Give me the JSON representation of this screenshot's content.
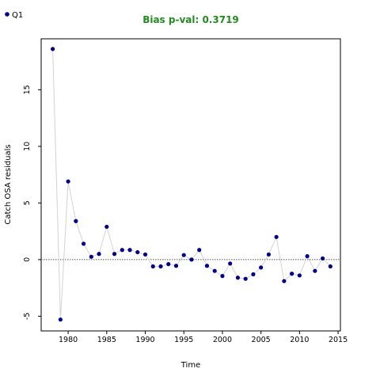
{
  "chart_data": {
    "type": "scatter",
    "title": "Bias p-val: 0.3719",
    "xlabel": "Time",
    "ylabel": "Catch OSA residuals",
    "xlim": [
      1976.5,
      2015.3
    ],
    "ylim": [
      -6.3,
      19.5
    ],
    "xticks": [
      1980,
      1985,
      1990,
      1995,
      2000,
      2005,
      2010,
      2015
    ],
    "yticks": [
      -5,
      0,
      5,
      10,
      15
    ],
    "legend_position": "top-left",
    "reference_line": 0,
    "grid": false,
    "series": [
      {
        "name": "Q1",
        "color": "#00008b",
        "line_color": "#d3d3d3",
        "points": [
          {
            "x": 1978,
            "y": 18.6
          },
          {
            "x": 1979,
            "y": -5.3
          },
          {
            "x": 1980,
            "y": 6.9
          },
          {
            "x": 1981,
            "y": 3.4
          },
          {
            "x": 1982,
            "y": 1.4
          },
          {
            "x": 1983,
            "y": 0.25
          },
          {
            "x": 1984,
            "y": 0.5
          },
          {
            "x": 1985,
            "y": 2.9
          },
          {
            "x": 1986,
            "y": 0.5
          },
          {
            "x": 1987,
            "y": 0.85
          },
          {
            "x": 1988,
            "y": 0.85
          },
          {
            "x": 1989,
            "y": 0.65
          },
          {
            "x": 1990,
            "y": 0.45
          },
          {
            "x": 1991,
            "y": -0.6
          },
          {
            "x": 1992,
            "y": -0.6
          },
          {
            "x": 1993,
            "y": -0.4
          },
          {
            "x": 1994,
            "y": -0.55
          },
          {
            "x": 1995,
            "y": 0.4
          },
          {
            "x": 1996,
            "y": 0.0
          },
          {
            "x": 1997,
            "y": 0.85
          },
          {
            "x": 1998,
            "y": -0.55
          },
          {
            "x": 1999,
            "y": -1.0
          },
          {
            "x": 2000,
            "y": -1.45
          },
          {
            "x": 2001,
            "y": -0.35
          },
          {
            "x": 2002,
            "y": -1.6
          },
          {
            "x": 2003,
            "y": -1.7
          },
          {
            "x": 2004,
            "y": -1.3
          },
          {
            "x": 2005,
            "y": -0.7
          },
          {
            "x": 2006,
            "y": 0.45
          },
          {
            "x": 2007,
            "y": 2.0
          },
          {
            "x": 2008,
            "y": -1.9
          },
          {
            "x": 2009,
            "y": -1.25
          },
          {
            "x": 2010,
            "y": -1.4
          },
          {
            "x": 2011,
            "y": 0.3
          },
          {
            "x": 2012,
            "y": -1.0
          },
          {
            "x": 2013,
            "y": 0.1
          },
          {
            "x": 2014,
            "y": -0.6
          }
        ]
      }
    ],
    "title_color": "#228b22"
  }
}
